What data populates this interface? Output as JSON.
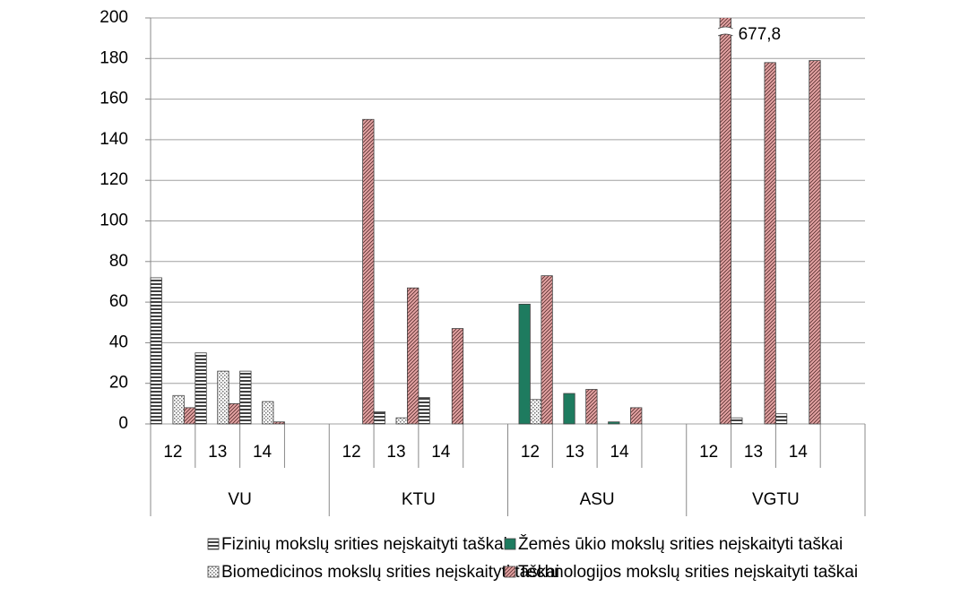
{
  "chart_data": {
    "type": "bar",
    "categories": [
      "12",
      "13",
      "14",
      null,
      "12",
      "13",
      "14",
      null,
      "12",
      "13",
      "14",
      null,
      "12",
      "13",
      "14",
      null
    ],
    "groups": [
      "VU",
      "KTU",
      "ASU",
      "VGTU"
    ],
    "series": [
      {
        "name": "Fizinių mokslų srities neįskaityti taškai",
        "color": "#404040",
        "pattern": "horizontal",
        "values": [
          72,
          35,
          26,
          null,
          null,
          6,
          13,
          null,
          null,
          null,
          null,
          null,
          null,
          3,
          5,
          null
        ]
      },
      {
        "name": "Žemės ūkio mokslų srities neįskaityti taškai",
        "color": "#1e7b5f",
        "pattern": "solid",
        "values": [
          null,
          null,
          null,
          null,
          null,
          null,
          null,
          null,
          59,
          15,
          1,
          null,
          null,
          null,
          null,
          null
        ]
      },
      {
        "name": "Biomedicinos mokslų srities neįskaityti taškai",
        "color": "#707070",
        "pattern": "dots",
        "values": [
          14,
          26,
          11,
          null,
          null,
          3,
          null,
          null,
          12,
          null,
          null,
          null,
          null,
          null,
          null,
          null
        ]
      },
      {
        "name": "Technologijos mokslų srities neįskaityti taškai",
        "color": "#e6a5a5",
        "pattern": "diagonal",
        "values": [
          8,
          10,
          1,
          null,
          150,
          67,
          47,
          null,
          73,
          17,
          8,
          null,
          677.8,
          178,
          179,
          null
        ],
        "value_labels": [
          null,
          null,
          null,
          null,
          null,
          null,
          null,
          null,
          null,
          null,
          null,
          null,
          "677,8",
          null,
          null,
          null
        ]
      }
    ],
    "ylim": [
      0,
      200
    ],
    "yticks": [
      0,
      20,
      40,
      60,
      80,
      100,
      120,
      140,
      160,
      180,
      200
    ],
    "grid": true
  }
}
